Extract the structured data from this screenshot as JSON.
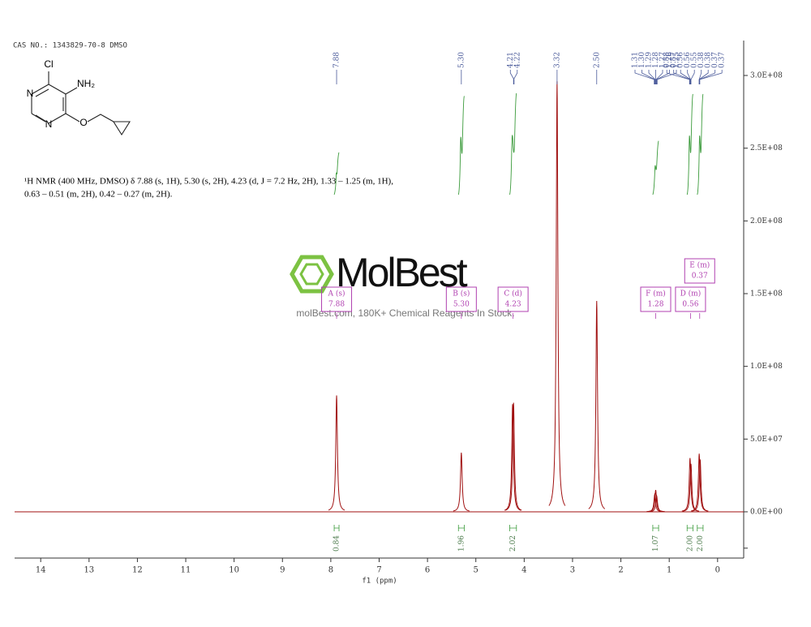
{
  "header": {
    "cas": "CAS NO.: 1343829-70-8 DMSO"
  },
  "structure": {
    "atoms": [
      "Cl",
      "NH₂",
      "N",
      "N",
      "O"
    ]
  },
  "description": [
    "¹H NMR (400 MHz, DMSO) δ 7.88 (s, 1H), 5.30 (s, 2H), 4.23 (d, J = 7.2 Hz, 2H), 1.33 – 1.25 (m, 1H),",
    "0.63 – 0.51 (m, 2H), 0.42 – 0.27 (m, 2H)."
  ],
  "watermark": {
    "name": "MolBest",
    "tagline": "molBest.com, 180K+ Chemical Reagents In Stock."
  },
  "chart_data": {
    "type": "nmr",
    "x_label": "f1 (ppm)",
    "color": "#a01010",
    "xlim": [
      14.54,
      -0.54
    ],
    "ylim": [
      -31800000,
      324000000
    ],
    "xticks": [
      14,
      13,
      12,
      11,
      10,
      9,
      8,
      7,
      6,
      5,
      4,
      3,
      2,
      1,
      0
    ],
    "yticks": [
      {
        "value": -25000000,
        "label": null
      },
      {
        "value": 0,
        "label": "0.0E+00"
      },
      {
        "value": 50000000,
        "label": "5.0E+07"
      },
      {
        "value": 100000000,
        "label": "1.0E+08"
      },
      {
        "value": 150000000,
        "label": "1.5E+08"
      },
      {
        "value": 200000000,
        "label": "2.0E+08"
      },
      {
        "value": 250000000,
        "label": "2.5E+08"
      },
      {
        "value": 300000000,
        "label": "3.0E+08"
      }
    ],
    "peaks": {
      "ppm": [
        7.88,
        5.3,
        4.22,
        4.24,
        3.32,
        2.5,
        1.3,
        1.28,
        1.26,
        0.57,
        0.55,
        0.38,
        0.36
      ],
      "values": [
        80000000,
        40700000,
        75000000,
        74000000,
        296000000,
        145000000,
        12000000,
        15000000,
        11000000,
        37000000,
        33000000,
        40000000,
        36000000
      ]
    },
    "peak_labels": [
      [
        7.88
      ],
      [
        {
          "value": 5.3,
          "label": "5.30"
        }
      ],
      [
        4.21,
        4.22
      ],
      [
        3.32
      ],
      [
        {
          "value": 2.5,
          "label": "2.50"
        }
      ],
      [
        1.31,
        {
          "value": 1.3,
          "label": "1.30"
        },
        1.29,
        1.28,
        1.27,
        1.26,
        1.25
      ],
      [
        0.58,
        0.57,
        0.56,
        0.56,
        0.55,
        0.38,
        0.38,
        0.37,
        0.37
      ]
    ],
    "multiplets": [
      {
        "label": "A (s)",
        "shift": 7.88
      },
      {
        "label": "B (s)",
        "shift": {
          "value": 5.3,
          "label": "5.30"
        }
      },
      {
        "label": "C (d)",
        "shift": 4.23
      },
      {
        "label": "F (m)",
        "shift": 1.28
      },
      {
        "label": "D (m)",
        "shift": 0.56
      },
      {
        "label": "E (m)",
        "shift": 0.37
      }
    ],
    "integrals": [
      {
        "value": 0.84,
        "range": [
          7.93,
          7.83
        ]
      },
      {
        "value": 1.96,
        "range": [
          5.36,
          5.24
        ]
      },
      {
        "value": 2.02,
        "range": [
          4.3,
          4.16
        ]
      },
      {
        "value": 1.07,
        "range": [
          1.34,
          1.22
        ]
      },
      {
        "value": {
          "value": 2,
          "label": "2.00"
        },
        "range": [
          0.63,
          0.51
        ]
      },
      {
        "value": {
          "value": 2,
          "label": "2.00"
        },
        "range": [
          0.42,
          0.3
        ]
      }
    ]
  }
}
